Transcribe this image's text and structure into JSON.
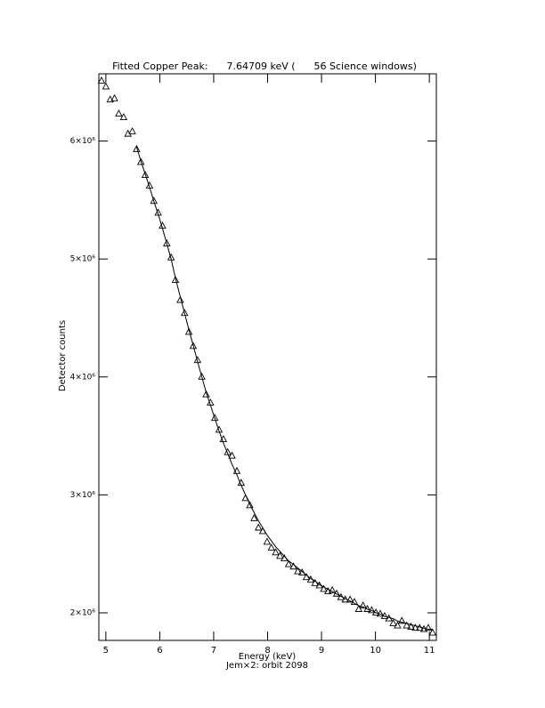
{
  "chart_data": {
    "type": "scatter",
    "title": "Fitted Copper Peak:      7.64709 keV (      56 Science windows)",
    "x_label": "Energy (keV)",
    "subtitle": "Jem×2: orbit 2098",
    "y_label": "Detector counts",
    "color": "#000000",
    "xlim": [
      4.87,
      11.13
    ],
    "ylim": [
      1766000,
      6570000
    ],
    "xticks": [
      5,
      6,
      7,
      8,
      9,
      10,
      11
    ],
    "yticks": [
      {
        "value": 2000000,
        "label": "2×10⁶"
      },
      {
        "value": 3000000,
        "label": "3×10⁶"
      },
      {
        "value": 4000000,
        "label": "4×10⁶"
      },
      {
        "value": 5000000,
        "label": "5×10⁶"
      },
      {
        "value": 6000000,
        "label": "6×10⁶"
      }
    ],
    "x": [
      4.92,
      5.0,
      5.08,
      5.16,
      5.24,
      5.33,
      5.41,
      5.49,
      5.57,
      5.65,
      5.73,
      5.81,
      5.89,
      5.97,
      6.05,
      6.13,
      6.21,
      6.29,
      6.38,
      6.46,
      6.54,
      6.62,
      6.7,
      6.78,
      6.86,
      6.94,
      7.02,
      7.1,
      7.18,
      7.26,
      7.34,
      7.43,
      7.51,
      7.59,
      7.67,
      7.75,
      7.83,
      7.91,
      7.99,
      8.07,
      8.15,
      8.23,
      8.31,
      8.39,
      8.48,
      8.56,
      8.64,
      8.72,
      8.8,
      8.88,
      8.96,
      9.04,
      9.12,
      9.2,
      9.28,
      9.36,
      9.44,
      9.53,
      9.61,
      9.69,
      9.77,
      9.85,
      9.93,
      10.01,
      10.09,
      10.17,
      10.25,
      10.33,
      10.41,
      10.49,
      10.58,
      10.66,
      10.74,
      10.82,
      10.9,
      10.98,
      11.06
    ],
    "series": [
      {
        "marker": "triangle",
        "values": [
          6510000,
          6460000,
          6350000,
          6360000,
          6230000,
          6200000,
          6060000,
          6080000,
          5930000,
          5820000,
          5710000,
          5620000,
          5490000,
          5390000,
          5280000,
          5130000,
          5010000,
          4820000,
          4650000,
          4540000,
          4380000,
          4260000,
          4140000,
          4000000,
          3850000,
          3780000,
          3650000,
          3550000,
          3470000,
          3360000,
          3330000,
          3200000,
          3100000,
          2970000,
          2910000,
          2800000,
          2720000,
          2690000,
          2600000,
          2550000,
          2510000,
          2480000,
          2460000,
          2410000,
          2390000,
          2350000,
          2340000,
          2300000,
          2280000,
          2250000,
          2230000,
          2200000,
          2180000,
          2190000,
          2160000,
          2130000,
          2110000,
          2110000,
          2090000,
          2030000,
          2060000,
          2030000,
          2020000,
          2000000,
          1990000,
          1970000,
          1950000,
          1910000,
          1890000,
          1930000,
          1890000,
          1880000,
          1870000,
          1870000,
          1860000,
          1870000,
          1830000
        ]
      },
      {
        "marker": "line",
        "values": [
          null,
          null,
          null,
          null,
          null,
          null,
          null,
          null,
          5950000,
          5830000,
          5720000,
          5610000,
          5490000,
          5380000,
          5260000,
          5130000,
          5000000,
          4840000,
          4680000,
          4540000,
          4400000,
          4270000,
          4130000,
          4000000,
          3870000,
          3760000,
          3650000,
          3540000,
          3440000,
          3350000,
          3260000,
          3170000,
          3080000,
          3000000,
          2920000,
          2850000,
          2780000,
          2720000,
          2660000,
          2610000,
          2560000,
          2520000,
          2480000,
          2440000,
          2410000,
          2380000,
          2350000,
          2320000,
          2290000,
          2270000,
          2240000,
          2220000,
          2200000,
          2180000,
          2160000,
          2140000,
          2120000,
          2100000,
          2080000,
          2060000,
          2050000,
          2030000,
          2020000,
          2000000,
          1990000,
          1970000,
          1960000,
          1950000,
          1930000,
          1920000,
          1910000,
          1900000,
          1890000,
          1880000,
          1870000,
          1860000,
          1860000
        ]
      }
    ]
  }
}
